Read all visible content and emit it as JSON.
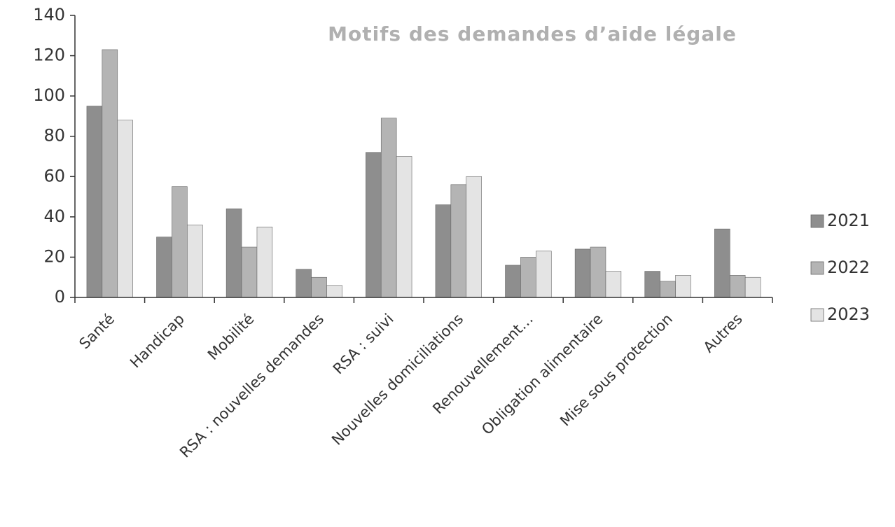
{
  "chart_data": {
    "type": "bar",
    "title": "Motifs des demandes d’aide légale",
    "categories": [
      "Santé",
      "Handicap",
      "Mobilité",
      "RSA : nouvelles demandes",
      "RSA : suivi",
      "Nouvelles domiciliations",
      "Renouvellement…",
      "Obligation alimentaire",
      "Mise sous protection",
      "Autres"
    ],
    "series": [
      {
        "name": "2021",
        "color": "#8e8e8e",
        "values": [
          95,
          30,
          44,
          14,
          72,
          46,
          16,
          24,
          13,
          34
        ]
      },
      {
        "name": "2022",
        "color": "#b4b4b4",
        "values": [
          123,
          55,
          25,
          10,
          89,
          56,
          20,
          25,
          8,
          11
        ]
      },
      {
        "name": "2023",
        "color": "#e4e4e4",
        "values": [
          88,
          36,
          35,
          6,
          70,
          60,
          23,
          13,
          11,
          10
        ]
      }
    ],
    "ylim": [
      0,
      140
    ],
    "yticks": [
      0,
      20,
      40,
      60,
      80,
      100,
      120,
      140
    ],
    "grid": false,
    "legend": "right"
  }
}
